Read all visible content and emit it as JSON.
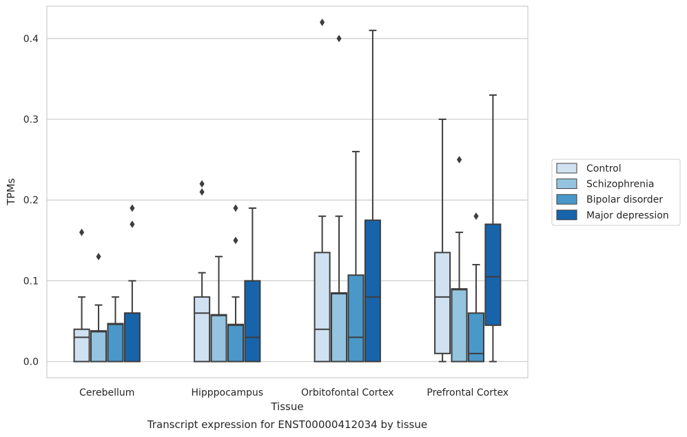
{
  "caption": "Transcript expression for ENST00000412034 by tissue",
  "chart_data": {
    "type": "boxplot",
    "xlabel": "Tissue",
    "ylabel": "TPMs",
    "ylim": [
      -0.02,
      0.44
    ],
    "yticks": [
      0.0,
      0.1,
      0.2,
      0.3,
      0.4
    ],
    "ytick_labels": [
      "0.0",
      "0.1",
      "0.2",
      "0.3",
      "0.4"
    ],
    "grid": "horizontal",
    "legend_position": "right",
    "categories": [
      "Cerebellum",
      "Hipppocampus",
      "Orbitofontal Cortex",
      "Prefrontal Cortex"
    ],
    "series": [
      {
        "name": "Control",
        "color": "#d0e1f2",
        "boxes": [
          {
            "q1": 0.0,
            "median": 0.03,
            "q3": 0.04,
            "whisker_low": 0.0,
            "whisker_high": 0.08,
            "outliers": [
              0.16
            ]
          },
          {
            "q1": 0.0,
            "median": 0.06,
            "q3": 0.08,
            "whisker_low": 0.0,
            "whisker_high": 0.11,
            "outliers": [
              0.21,
              0.22
            ]
          },
          {
            "q1": 0.0,
            "median": 0.04,
            "q3": 0.135,
            "whisker_low": 0.0,
            "whisker_high": 0.18,
            "outliers": [
              0.42
            ]
          },
          {
            "q1": 0.01,
            "median": 0.08,
            "q3": 0.135,
            "whisker_low": 0.0,
            "whisker_high": 0.3,
            "outliers": []
          }
        ]
      },
      {
        "name": "Schizophrenia",
        "color": "#94c4df",
        "boxes": [
          {
            "q1": 0.0,
            "median": 0.037,
            "q3": 0.038,
            "whisker_low": 0.0,
            "whisker_high": 0.07,
            "outliers": [
              0.13
            ]
          },
          {
            "q1": 0.0,
            "median": 0.057,
            "q3": 0.058,
            "whisker_low": 0.0,
            "whisker_high": 0.13,
            "outliers": []
          },
          {
            "q1": 0.0,
            "median": 0.084,
            "q3": 0.085,
            "whisker_low": 0.0,
            "whisker_high": 0.18,
            "outliers": [
              0.4
            ]
          },
          {
            "q1": 0.0,
            "median": 0.089,
            "q3": 0.09,
            "whisker_low": 0.0,
            "whisker_high": 0.16,
            "outliers": [
              0.25
            ]
          }
        ]
      },
      {
        "name": "Bipolar disorder",
        "color": "#4a98c9",
        "boxes": [
          {
            "q1": 0.0,
            "median": 0.046,
            "q3": 0.047,
            "whisker_low": 0.0,
            "whisker_high": 0.08,
            "outliers": []
          },
          {
            "q1": 0.0,
            "median": 0.045,
            "q3": 0.046,
            "whisker_low": 0.0,
            "whisker_high": 0.08,
            "outliers": [
              0.15,
              0.19
            ]
          },
          {
            "q1": 0.0,
            "median": 0.03,
            "q3": 0.107,
            "whisker_low": 0.0,
            "whisker_high": 0.26,
            "outliers": []
          },
          {
            "q1": 0.0,
            "median": 0.01,
            "q3": 0.06,
            "whisker_low": 0.0,
            "whisker_high": 0.12,
            "outliers": [
              0.18
            ]
          }
        ]
      },
      {
        "name": "Major depression",
        "color": "#1764ab",
        "boxes": [
          {
            "q1": 0.0,
            "median": 0.06,
            "q3": 0.06,
            "whisker_low": 0.0,
            "whisker_high": 0.1,
            "outliers": [
              0.17,
              0.19
            ]
          },
          {
            "q1": 0.0,
            "median": 0.03,
            "q3": 0.1,
            "whisker_low": 0.0,
            "whisker_high": 0.19,
            "outliers": []
          },
          {
            "q1": 0.0,
            "median": 0.08,
            "q3": 0.175,
            "whisker_low": 0.0,
            "whisker_high": 0.41,
            "outliers": []
          },
          {
            "q1": 0.045,
            "median": 0.105,
            "q3": 0.17,
            "whisker_low": 0.0,
            "whisker_high": 0.33,
            "outliers": []
          }
        ]
      }
    ]
  }
}
